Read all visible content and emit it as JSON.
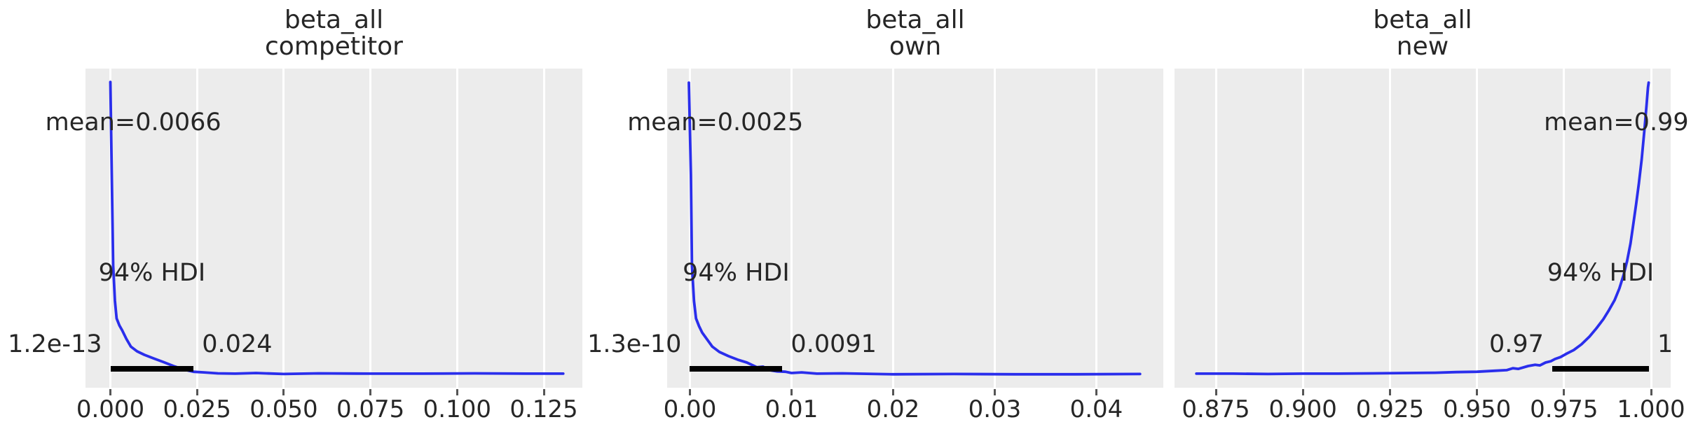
{
  "style": {
    "figure_bg": "#ffffff",
    "panel_bg": "#ececec",
    "grid_color": "#ffffff",
    "curve_color": "#2a2eec",
    "text_color": "#262626",
    "hdi_bar_color": "#000000",
    "tick_color": "#555555"
  },
  "chart_data": [
    {
      "type": "line",
      "subtype": "posterior-kde",
      "title_line1": "beta_all",
      "title_line2": "competitor",
      "mean": 0.0066,
      "mean_label": "mean=0.0066",
      "hdi_label": "94% HDI",
      "hdi_low": 0.0,
      "hdi_high": 0.024,
      "hdi_low_label": "1.2e-13",
      "hdi_high_label": "0.024",
      "xlim": [
        -0.00718,
        0.13611
      ],
      "grid": true,
      "xticks": [
        {
          "v": 0.0,
          "label": "0.000"
        },
        {
          "v": 0.025,
          "label": "0.025"
        },
        {
          "v": 0.05,
          "label": "0.050"
        },
        {
          "v": 0.075,
          "label": "0.075"
        },
        {
          "v": 0.1,
          "label": "0.100"
        },
        {
          "v": 0.125,
          "label": "0.125"
        }
      ],
      "curve": [
        [
          0.0,
          0.042
        ],
        [
          0.0004,
          0.333
        ],
        [
          0.0008,
          0.618
        ],
        [
          0.0013,
          0.728
        ],
        [
          0.0018,
          0.783
        ],
        [
          0.0026,
          0.805
        ],
        [
          0.0034,
          0.82
        ],
        [
          0.0046,
          0.847
        ],
        [
          0.0059,
          0.871
        ],
        [
          0.0077,
          0.886
        ],
        [
          0.0098,
          0.897
        ],
        [
          0.0124,
          0.908
        ],
        [
          0.0152,
          0.919
        ],
        [
          0.0182,
          0.932
        ],
        [
          0.0212,
          0.943
        ],
        [
          0.0239,
          0.95
        ],
        [
          0.027,
          0.952
        ],
        [
          0.031,
          0.955
        ],
        [
          0.036,
          0.956
        ],
        [
          0.042,
          0.954
        ],
        [
          0.05,
          0.957
        ],
        [
          0.06,
          0.955
        ],
        [
          0.075,
          0.956
        ],
        [
          0.09,
          0.956
        ],
        [
          0.105,
          0.955
        ],
        [
          0.12,
          0.956
        ],
        [
          0.1306,
          0.956
        ]
      ]
    },
    {
      "type": "line",
      "subtype": "posterior-kde",
      "title_line1": "beta_all",
      "title_line2": "own",
      "mean": 0.0025,
      "mean_label": "mean=0.0025",
      "hdi_label": "94% HDI",
      "hdi_low": 0.0,
      "hdi_high": 0.0091,
      "hdi_low_label": "1.3e-10",
      "hdi_high_label": "0.0091",
      "xlim": [
        -0.00224,
        0.04659
      ],
      "grid": true,
      "xticks": [
        {
          "v": 0.0,
          "label": "0.00"
        },
        {
          "v": 0.01,
          "label": "0.01"
        },
        {
          "v": 0.02,
          "label": "0.02"
        },
        {
          "v": 0.03,
          "label": "0.03"
        },
        {
          "v": 0.04,
          "label": "0.04"
        }
      ],
      "curve": [
        [
          -0.0001,
          0.044
        ],
        [
          0.0001,
          0.333
        ],
        [
          0.0002,
          0.618
        ],
        [
          0.0004,
          0.728
        ],
        [
          0.0006,
          0.783
        ],
        [
          0.0009,
          0.807
        ],
        [
          0.0012,
          0.827
        ],
        [
          0.0017,
          0.849
        ],
        [
          0.0022,
          0.871
        ],
        [
          0.0029,
          0.888
        ],
        [
          0.0038,
          0.901
        ],
        [
          0.0047,
          0.912
        ],
        [
          0.0056,
          0.921
        ],
        [
          0.0066,
          0.936
        ],
        [
          0.0072,
          0.934
        ],
        [
          0.0078,
          0.945
        ],
        [
          0.0086,
          0.949
        ],
        [
          0.0094,
          0.95
        ],
        [
          0.01,
          0.954
        ],
        [
          0.011,
          0.952
        ],
        [
          0.0125,
          0.956
        ],
        [
          0.015,
          0.955
        ],
        [
          0.02,
          0.958
        ],
        [
          0.026,
          0.957
        ],
        [
          0.032,
          0.958
        ],
        [
          0.038,
          0.958
        ],
        [
          0.0443,
          0.957
        ]
      ]
    },
    {
      "type": "line",
      "subtype": "posterior-kde",
      "title_line1": "beta_all",
      "title_line2": "new",
      "mean": 0.99,
      "mean_label": "mean=0.99",
      "hdi_label": "94% HDI",
      "hdi_low": 0.9716,
      "hdi_high": 0.9994,
      "hdi_low_label": "0.97",
      "hdi_high_label": "1",
      "xlim": [
        0.86312,
        1.00563
      ],
      "grid": true,
      "xticks": [
        {
          "v": 0.875,
          "label": "0.875"
        },
        {
          "v": 0.9,
          "label": "0.900"
        },
        {
          "v": 0.925,
          "label": "0.925"
        },
        {
          "v": 0.95,
          "label": "0.950"
        },
        {
          "v": 0.975,
          "label": "0.975"
        },
        {
          "v": 1.0,
          "label": "1.000"
        }
      ],
      "curve": [
        [
          0.8694,
          0.956
        ],
        [
          0.88,
          0.956
        ],
        [
          0.89,
          0.957
        ],
        [
          0.9,
          0.956
        ],
        [
          0.91,
          0.956
        ],
        [
          0.92,
          0.955
        ],
        [
          0.93,
          0.954
        ],
        [
          0.938,
          0.953
        ],
        [
          0.944,
          0.951
        ],
        [
          0.95,
          0.95
        ],
        [
          0.955,
          0.947
        ],
        [
          0.9585,
          0.945
        ],
        [
          0.9603,
          0.939
        ],
        [
          0.9619,
          0.941
        ],
        [
          0.9647,
          0.932
        ],
        [
          0.9667,
          0.928
        ],
        [
          0.9681,
          0.93
        ],
        [
          0.9697,
          0.921
        ],
        [
          0.9712,
          0.917
        ],
        [
          0.9724,
          0.91
        ],
        [
          0.974,
          0.904
        ],
        [
          0.9758,
          0.893
        ],
        [
          0.9778,
          0.882
        ],
        [
          0.98,
          0.864
        ],
        [
          0.9823,
          0.84
        ],
        [
          0.9843,
          0.814
        ],
        [
          0.9863,
          0.785
        ],
        [
          0.9879,
          0.757
        ],
        [
          0.9895,
          0.726
        ],
        [
          0.9909,
          0.689
        ],
        [
          0.9921,
          0.647
        ],
        [
          0.9931,
          0.603
        ],
        [
          0.9941,
          0.548
        ],
        [
          0.9949,
          0.487
        ],
        [
          0.9957,
          0.425
        ],
        [
          0.9965,
          0.36
        ],
        [
          0.9973,
          0.285
        ],
        [
          0.9981,
          0.191
        ],
        [
          0.9987,
          0.114
        ],
        [
          0.9991,
          0.059
        ],
        [
          0.9993,
          0.044
        ]
      ]
    }
  ]
}
